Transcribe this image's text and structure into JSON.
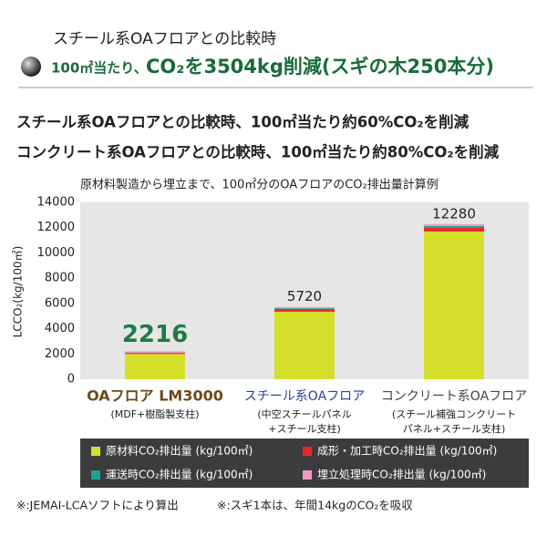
{
  "header": {
    "subtitle": "スチール系OAフロアとの比較時",
    "headline_prefix": "100㎡当たり、",
    "headline": "CO₂を3504kg削減(スギの木250本分)",
    "statements": [
      "スチール系OAフロアとの比較時、100㎡当たり約60%CO₂を削減",
      "コンクリート系OAフロアとの比較時、100㎡当たり約80%CO₂を削減"
    ]
  },
  "chart_data": {
    "type": "bar",
    "stacked": true,
    "title": "原材料製造から埋立まで、100㎡分のOAフロアのCO₂排出量計算例",
    "y_label": "LCCO₂(kg/100㎡)",
    "categories": [
      "OAフロア LM3000",
      "スチール系OAフロア",
      "コンクリート系OAフロア"
    ],
    "category_notes": [
      [
        "(MDF+樹脂製支柱)"
      ],
      [
        "(中空スチールパネル",
        "+スチール支柱)"
      ],
      [
        "(スチール補強コンクリート",
        "パネル+スチール支柱)"
      ]
    ],
    "series": [
      {
        "name": "原材料CO₂排出量 (kg/100㎡)",
        "color": "#d3df2a",
        "values": [
          2000,
          5350,
          11700
        ]
      },
      {
        "name": "成形・加工時CO₂排出量 (kg/100㎡)",
        "color": "#e8262a",
        "values": [
          60,
          200,
          300
        ]
      },
      {
        "name": "運送時CO₂排出量 (kg/100㎡)",
        "color": "#1aa58f",
        "values": [
          36,
          70,
          130
        ]
      },
      {
        "name": "埋立処理時CO₂排出量 (kg/100㎡)",
        "color": "#f49ac1",
        "values": [
          120,
          100,
          150
        ]
      }
    ],
    "totals": [
      2216,
      5720,
      12280
    ],
    "ylim": [
      0,
      14000
    ],
    "yticks": [
      0,
      2000,
      4000,
      6000,
      8000,
      10000,
      12000,
      14000
    ],
    "grid": false
  },
  "footnotes": [
    "※:JEMAI-LCAソフトにより算出",
    "※:スギ1本は、年間14kgのCO₂を吸収"
  ]
}
